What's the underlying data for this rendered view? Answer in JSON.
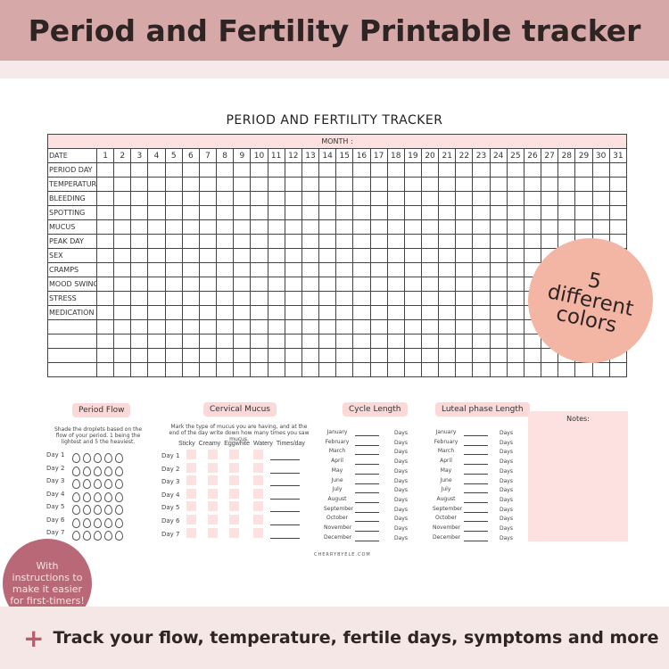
{
  "banner": {
    "title": "Period and Fertility Printable tracker"
  },
  "sheet": {
    "title": "PERIOD AND FERTILITY TRACKER",
    "month_label": "MONTH :",
    "date_label": "DATE",
    "rows": [
      "PERIOD DAY",
      "TEMPERATURE",
      "BLEEDING",
      "SPOTTING",
      "MUCUS",
      "PEAK DAY",
      "SEX",
      "CRAMPS",
      "MOOD SWINGS",
      "STRESS",
      "MEDICATION",
      "",
      "",
      "",
      ""
    ],
    "days": 31
  },
  "period_flow": {
    "title": "Period Flow",
    "instruction": "Shade the droplets based on the flow of your period. 1 being the lightest and 5 the heaviest.",
    "days": [
      "Day 1",
      "Day 2",
      "Day 3",
      "Day 4",
      "Day 5",
      "Day 6",
      "Day 7"
    ]
  },
  "cervical_mucus": {
    "title": "Cervical Mucus",
    "instruction": "Mark the type of mucus you are having, and at the end of the day write down how many times you saw mucus.",
    "columns": [
      "Sticky",
      "Creamy",
      "Eggwhite",
      "Watery",
      "Times/day"
    ],
    "days": [
      "Day 1",
      "Day 2",
      "Day 3",
      "Day 4",
      "Day 5",
      "Day 6",
      "Day 7"
    ]
  },
  "cycle_length": {
    "title": "Cycle Length",
    "unit": "Days"
  },
  "luteal_length": {
    "title": "Luteal phase Length",
    "unit": "Days"
  },
  "months": [
    "January",
    "February",
    "March",
    "April",
    "May",
    "June",
    "July",
    "August",
    "September",
    "October",
    "November",
    "December"
  ],
  "notes": {
    "label": "Notes:"
  },
  "brand": "CHERRYBYELE.COM",
  "badge_colors": {
    "text": "5 different colors"
  },
  "badge_instructions": {
    "text": "With instructions to make it easier for first-timers!"
  },
  "footer": {
    "text": "Track your flow, temperature, fertile days, symptoms and more"
  },
  "colors": {
    "banner": "#d6a8a8",
    "accent": "#b85c6e",
    "pink": "#fde0e0",
    "salmon": "#f4b6a4"
  }
}
